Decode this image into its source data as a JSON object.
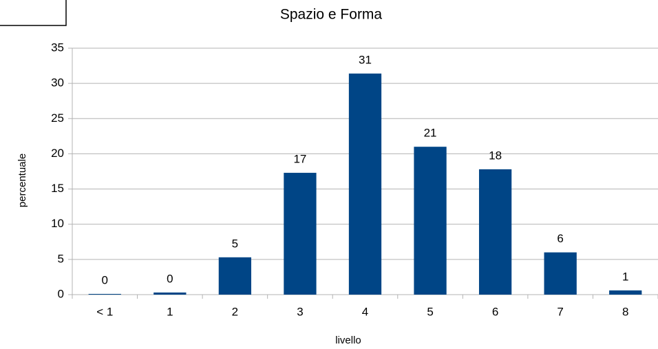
{
  "chart_data": {
    "type": "bar",
    "title": "Spazio e Forma",
    "x_label": "livello",
    "y_label": "percentuale",
    "categories": [
      "< 1",
      "1",
      "2",
      "3",
      "4",
      "5",
      "6",
      "7",
      "8"
    ],
    "values": [
      0.1,
      0.3,
      5.3,
      17.3,
      31.4,
      21.0,
      17.8,
      6.0,
      0.6
    ],
    "value_labels": [
      "0",
      "0",
      "5",
      "17",
      "31",
      "21",
      "18",
      "6",
      "1"
    ],
    "color": "#004586",
    "ylim": [
      0,
      35
    ],
    "yticks": [
      0,
      5,
      10,
      15,
      20,
      25,
      30,
      35
    ],
    "grid": true
  }
}
